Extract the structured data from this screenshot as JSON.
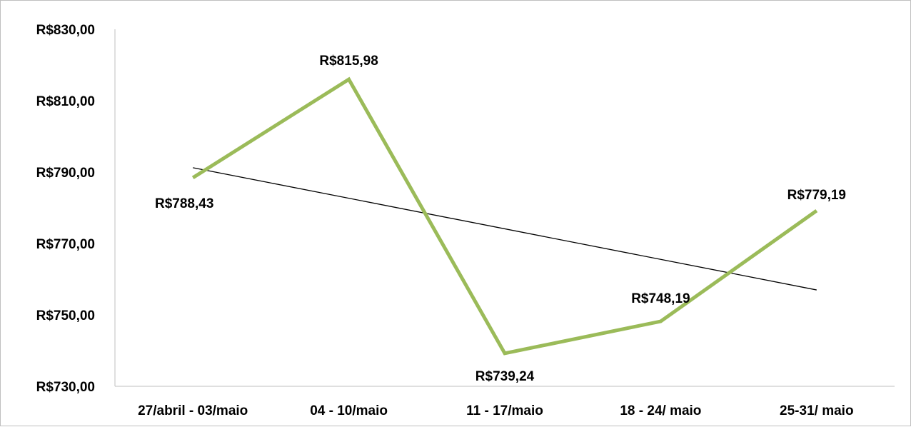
{
  "chart_data": {
    "type": "line",
    "title": "",
    "xlabel": "",
    "ylabel": "",
    "categories": [
      "27/abril - 03/maio",
      "04 - 10/maio",
      "11 - 17/maio",
      "18 - 24/ maio",
      "25-31/ maio"
    ],
    "values": [
      788.43,
      815.98,
      739.24,
      748.19,
      779.19
    ],
    "data_labels": [
      "R$788,43",
      "R$815,98",
      "R$739,24",
      "R$748,19",
      "R$779,19"
    ],
    "ylim": [
      730,
      830
    ],
    "yticks": [
      730,
      750,
      770,
      790,
      810,
      830
    ],
    "ytick_labels": [
      "R$730,00",
      "R$750,00",
      "R$770,00",
      "R$790,00",
      "R$810,00",
      "R$830,00"
    ],
    "trendline": {
      "type": "linear",
      "start": 791.23,
      "end": 756.99
    },
    "grid": false,
    "legend": "none",
    "colors": {
      "series": "#9bbb59",
      "trendline": "#000000",
      "axis": "#bfbfbf"
    }
  }
}
